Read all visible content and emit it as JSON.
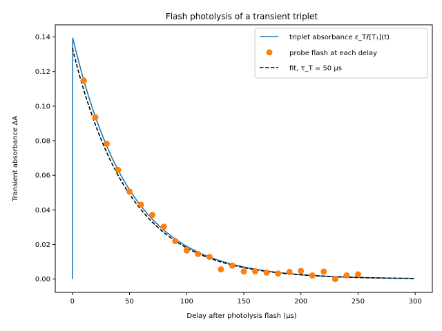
{
  "chart_data": {
    "type": "line",
    "title": "Flash photolysis of a transient triplet",
    "xlabel": "Delay after photolysis flash (μs)",
    "ylabel": "Transient absorbance ΔA",
    "xlim": [
      -15,
      315
    ],
    "ylim": [
      -0.0077,
      0.147
    ],
    "xticks": [
      0,
      50,
      100,
      150,
      200,
      250,
      300
    ],
    "xtick_labels": [
      "0",
      "50",
      "100",
      "150",
      "200",
      "250",
      "300"
    ],
    "yticks": [
      0.0,
      0.02,
      0.04,
      0.06,
      0.08,
      0.1,
      0.12,
      0.14
    ],
    "ytick_labels": [
      "0.00",
      "0.02",
      "0.04",
      "0.06",
      "0.08",
      "0.10",
      "0.12",
      "0.14"
    ],
    "grid": false,
    "legend_position": "upper right",
    "legend": [
      {
        "label": "triplet absorbance ε_Tℓ[T₁](t)",
        "kind": "line",
        "color": "#1f77b4"
      },
      {
        "label": "probe flash at each delay",
        "kind": "marker",
        "color": "#ff7f0e"
      },
      {
        "label": "fit, τ_T = 50 μs",
        "kind": "dashed",
        "color": "#000000"
      }
    ],
    "series": [
      {
        "name": "triplet absorbance ε_Tℓ[T₁](t)",
        "kind": "line",
        "color": "#1f77b4",
        "rise": {
          "x": [
            0,
            0.3
          ],
          "y": [
            0.0,
            0.1395
          ]
        },
        "decay": {
          "A": 0.1395,
          "tau": 50.0,
          "t_start": 0.3,
          "t_end": 300
        }
      },
      {
        "name": "probe flash at each delay",
        "kind": "scatter",
        "color": "#ff7f0e",
        "x": [
          10,
          20,
          30,
          40,
          50,
          60,
          70,
          80,
          90,
          100,
          110,
          120,
          130,
          140,
          150,
          160,
          170,
          180,
          190,
          200,
          210,
          220,
          230,
          240,
          250
        ],
        "y": [
          0.1148,
          0.0935,
          0.0782,
          0.0631,
          0.0506,
          0.043,
          0.0371,
          0.0303,
          0.022,
          0.0165,
          0.0145,
          0.0128,
          0.0056,
          0.0078,
          0.0044,
          0.0045,
          0.0037,
          0.0032,
          0.0041,
          0.0047,
          0.0021,
          0.0043,
          0.0,
          0.0021,
          0.0027
        ]
      },
      {
        "name": "fit, τ_T = 50 μs",
        "kind": "dashed",
        "color": "#000000",
        "fit": {
          "A": 0.1335,
          "tau": 50.0,
          "t_start": 0,
          "t_end": 300
        }
      }
    ]
  }
}
